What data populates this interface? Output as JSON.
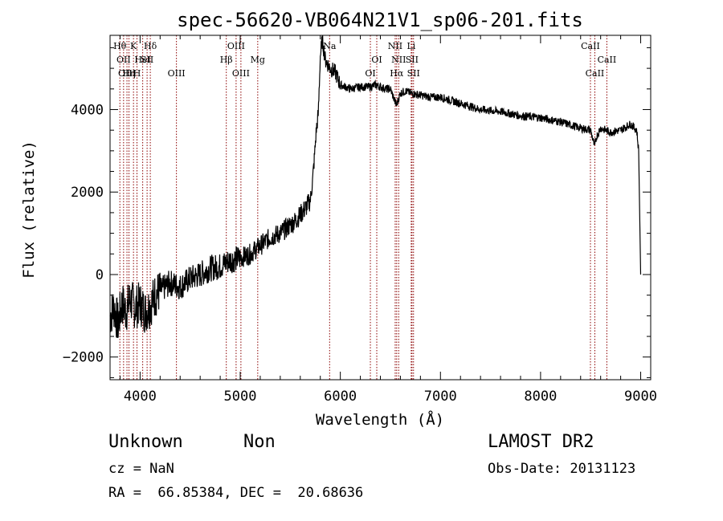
{
  "chart_data": {
    "type": "line",
    "title": "spec-56620-VB064N21V1_sp06-201.fits",
    "xlabel": "Wavelength (Å)",
    "ylabel": "Flux (relative)",
    "xlim": [
      3700,
      9100
    ],
    "ylim": [
      -2550,
      5800
    ],
    "xticks": [
      4000,
      5000,
      6000,
      7000,
      8000,
      9000
    ],
    "yticks": [
      -2000,
      0,
      2000,
      4000
    ],
    "grid": false,
    "line_color": "#000000",
    "marker_color": "#8b0000",
    "series": [
      {
        "x": [
          3700,
          3740,
          3780,
          3820,
          3860,
          3900,
          3950,
          4000,
          4050,
          4100,
          4150,
          4200,
          4300,
          4400,
          4500,
          4600,
          4700,
          4800,
          4900,
          5000,
          5100,
          5200,
          5300,
          5400,
          5500,
          5550,
          5600,
          5650,
          5700,
          5720,
          5740,
          5760,
          5780,
          5800,
          5820,
          5850,
          5900,
          5950,
          6000,
          6100,
          6200,
          6300,
          6350,
          6400,
          6450,
          6500,
          6560,
          6600,
          6650,
          6700,
          6800,
          6900,
          7000,
          7200,
          7400,
          7600,
          7800,
          8000,
          8200,
          8400,
          8500,
          8540,
          8560,
          8600,
          8700,
          8800,
          8900,
          8960,
          8980,
          9000
        ],
        "y": [
          -1000,
          -800,
          -1200,
          -700,
          -900,
          -600,
          -800,
          -700,
          -900,
          -750,
          -500,
          -400,
          -200,
          -300,
          -100,
          0,
          150,
          200,
          350,
          400,
          500,
          700,
          900,
          1000,
          1200,
          1300,
          1450,
          1600,
          1800,
          2200,
          2800,
          3500,
          3900,
          5300,
          5700,
          5200,
          5000,
          4900,
          4600,
          4500,
          4550,
          4550,
          4600,
          4550,
          4500,
          4500,
          4100,
          4400,
          4450,
          4400,
          4350,
          4300,
          4300,
          4150,
          4000,
          3950,
          3850,
          3800,
          3700,
          3550,
          3500,
          3100,
          3350,
          3550,
          3450,
          3500,
          3650,
          3500,
          3000,
          0
        ]
      }
    ],
    "line_markers": [
      {
        "wl": 3798,
        "label": "Hθ",
        "row": 0
      },
      {
        "wl": 3835,
        "label": "OII",
        "row": 1
      },
      {
        "wl": 3869,
        "label": "OIII",
        "row": 2
      },
      {
        "wl": 3889,
        "label": "Hη",
        "row": 2
      },
      {
        "wl": 3934,
        "label": "K",
        "row": 0
      },
      {
        "wl": 3969,
        "label": "H",
        "row": 2
      },
      {
        "wl": 4026,
        "label": "HeI",
        "row": 1
      },
      {
        "wl": 4070,
        "label": "SII",
        "row": 1
      },
      {
        "wl": 4102,
        "label": "Hδ",
        "row": 0
      },
      {
        "wl": 4363,
        "label": "OIII",
        "row": 2
      },
      {
        "wl": 4861,
        "label": "Hβ",
        "row": 1
      },
      {
        "wl": 4959,
        "label": "OIII",
        "row": 0
      },
      {
        "wl": 5007,
        "label": "OIII",
        "row": 2
      },
      {
        "wl": 5175,
        "label": "Mg",
        "row": 1
      },
      {
        "wl": 5893,
        "label": "Na",
        "row": 0
      },
      {
        "wl": 6300,
        "label": "OI",
        "row": 2
      },
      {
        "wl": 6364,
        "label": "OI",
        "row": 1
      },
      {
        "wl": 6548,
        "label": "NII",
        "row": 0
      },
      {
        "wl": 6563,
        "label": "Hα",
        "row": 2
      },
      {
        "wl": 6583,
        "label": "NII",
        "row": 1
      },
      {
        "wl": 6708,
        "label": "Li",
        "row": 0
      },
      {
        "wl": 6716,
        "label": "SII",
        "row": 1
      },
      {
        "wl": 6731,
        "label": "SII",
        "row": 2
      },
      {
        "wl": 8498,
        "label": "CaII",
        "row": 0
      },
      {
        "wl": 8542,
        "label": "CaII",
        "row": 2
      },
      {
        "wl": 8662,
        "label": "CaII",
        "row": 1
      }
    ]
  },
  "info": {
    "object_class": "Unknown",
    "subclass": "Non",
    "survey": "LAMOST DR2",
    "redshift": "cz = NaN",
    "obs_date": "Obs-Date: 20131123",
    "coords": "RA =  66.85384, DEC =  20.68636"
  }
}
